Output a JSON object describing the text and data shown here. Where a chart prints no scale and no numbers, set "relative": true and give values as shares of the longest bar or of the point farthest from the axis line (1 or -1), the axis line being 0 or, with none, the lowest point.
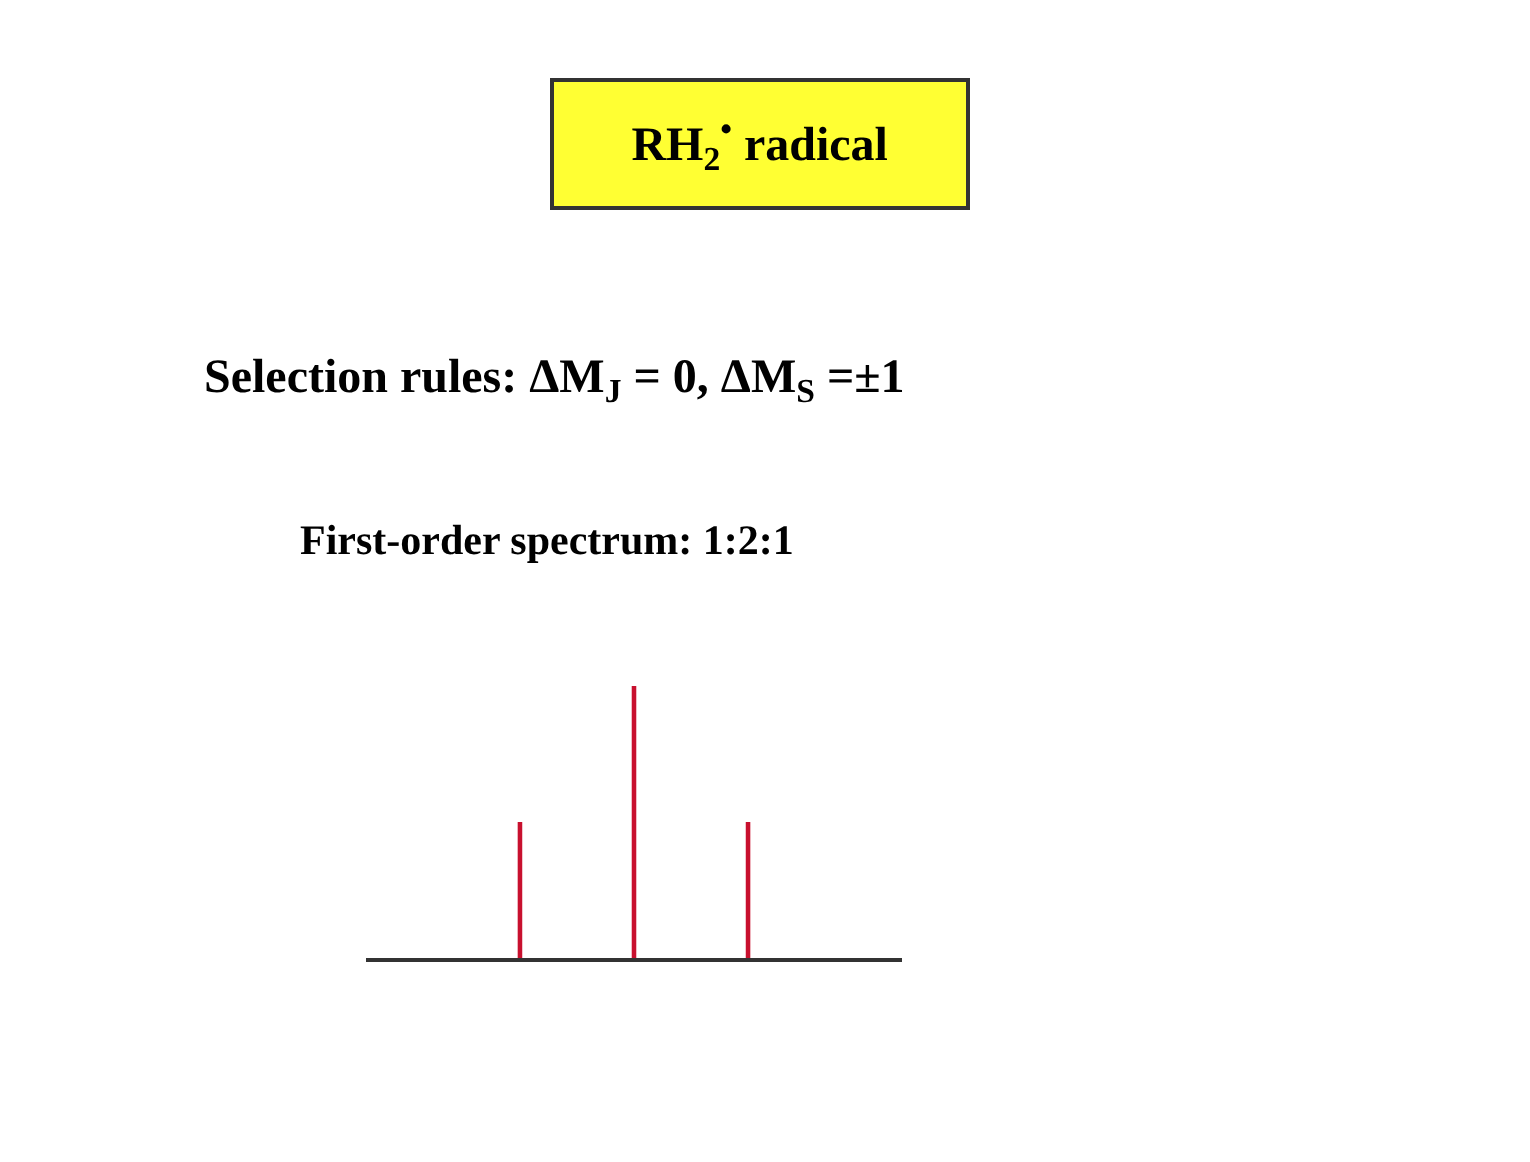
{
  "chart_data": {
    "type": "bar",
    "relative": true,
    "title": "RH$_{2}$$^{•}$ radical",
    "annotations": [
      "Selection rules: ΔM$_{J}$ = 0, ΔM$_{S}$ =±1",
      "First-order spectrum: 1:2:1"
    ],
    "categories": [
      null,
      null,
      null
    ],
    "values": [
      0.5,
      1,
      0.5
    ],
    "color": "#c8102e"
  }
}
